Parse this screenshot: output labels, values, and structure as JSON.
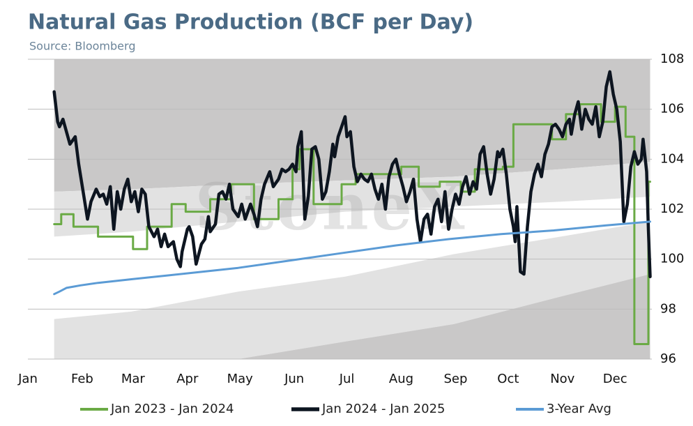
{
  "chart_data": {
    "type": "line",
    "title": "Natural Gas Production (BCF per Day)",
    "subtitle": "Source: Bloomberg",
    "watermark": "StoneX",
    "xlim": [
      0,
      356
    ],
    "xticks": [
      {
        "value": 0,
        "label": "Jan"
      },
      {
        "value": 31,
        "label": "Feb"
      },
      {
        "value": 60,
        "label": "Mar"
      },
      {
        "value": 91,
        "label": "Apr"
      },
      {
        "value": 121,
        "label": "May"
      },
      {
        "value": 152,
        "label": "Jun"
      },
      {
        "value": 182,
        "label": "Jul"
      },
      {
        "value": 213,
        "label": "Aug"
      },
      {
        "value": 244,
        "label": "Sep"
      },
      {
        "value": 274,
        "label": "Oct"
      },
      {
        "value": 305,
        "label": "Nov"
      },
      {
        "value": 335,
        "label": "Dec"
      }
    ],
    "ylim": [
      96,
      108
    ],
    "yticks": [
      96,
      98,
      100,
      102,
      104,
      106,
      108
    ],
    "grid": true,
    "legend": "bottom",
    "bands": {
      "x": [
        15,
        59,
        120,
        181,
        243,
        304,
        355
      ],
      "layers": [
        {
          "color": "#c9c8c8",
          "lower": [
            102.7,
            102.8,
            103.0,
            103.15,
            103.3,
            103.6,
            103.9
          ],
          "upper": [
            108,
            108,
            108,
            108,
            108,
            108,
            108
          ]
        },
        {
          "color": "#e2e2e2",
          "lower": [
            100.9,
            101.1,
            101.5,
            101.9,
            102.1,
            102.3,
            102.5
          ],
          "upper": [
            102.7,
            102.8,
            103.0,
            103.15,
            103.3,
            103.6,
            103.9
          ]
        },
        {
          "color": "#e2e2e2",
          "lower": [
            96,
            96,
            96,
            96.7,
            97.4,
            98.5,
            99.4
          ],
          "upper": [
            97.6,
            97.9,
            98.7,
            99.3,
            100.2,
            100.9,
            101.5
          ]
        },
        {
          "color": "#c9c8c8",
          "lower": [
            96,
            96,
            96,
            96,
            96,
            96,
            96
          ],
          "upper": [
            96,
            96,
            96,
            96.7,
            97.4,
            98.5,
            99.4
          ]
        }
      ]
    },
    "series": [
      {
        "name": "Jan 2023 - Jan 2024",
        "color": "#6aaa45",
        "width": 3,
        "x": [
          15,
          19,
          19,
          26,
          26,
          40,
          40,
          60,
          60,
          68,
          68,
          82,
          82,
          90,
          90,
          104,
          104,
          116,
          116,
          129,
          129,
          143,
          143,
          151,
          151,
          155,
          155,
          163,
          163,
          179,
          179,
          187,
          187,
          213,
          213,
          223,
          223,
          235,
          235,
          247,
          247,
          255,
          255,
          271,
          271,
          277,
          277,
          299,
          299,
          307,
          307,
          315,
          315,
          327,
          327,
          335,
          335,
          341,
          341,
          346,
          346,
          354,
          354,
          355
        ],
        "values": [
          101.4,
          101.4,
          101.8,
          101.8,
          101.3,
          101.3,
          100.9,
          100.9,
          100.4,
          100.4,
          101.3,
          101.3,
          102.2,
          102.2,
          101.9,
          101.9,
          102.4,
          102.4,
          103.0,
          103.0,
          101.6,
          101.6,
          102.4,
          102.4,
          103.6,
          103.6,
          104.4,
          104.4,
          102.2,
          102.2,
          103.0,
          103.0,
          103.4,
          103.4,
          103.7,
          103.7,
          102.9,
          102.9,
          103.1,
          103.1,
          102.7,
          102.7,
          103.6,
          103.6,
          103.7,
          103.7,
          105.4,
          105.4,
          104.8,
          104.8,
          105.8,
          105.8,
          106.2,
          106.2,
          105.5,
          105.5,
          106.1,
          106.1,
          104.9,
          104.9,
          96.6,
          96.6,
          103.1,
          103.1
        ]
      },
      {
        "name": "Jan 2024 - Jan 2025",
        "color": "#0d1520",
        "width": 4.5,
        "x": [
          15,
          17,
          18,
          20,
          22,
          24,
          27,
          29,
          32,
          34,
          36,
          39,
          41,
          43,
          45,
          47,
          49,
          51,
          53,
          55,
          57,
          59,
          61,
          63,
          65,
          67,
          69,
          72,
          74,
          76,
          78,
          80,
          83,
          85,
          87,
          88,
          91,
          92,
          94,
          96,
          99,
          101,
          103,
          104,
          107,
          109,
          111,
          113,
          115,
          117,
          120,
          122,
          124,
          127,
          129,
          131,
          133,
          135,
          138,
          140,
          143,
          145,
          147,
          149,
          151,
          153,
          154,
          156,
          158,
          160,
          162,
          164,
          166,
          168,
          170,
          172,
          174,
          175,
          177,
          179,
          181,
          182,
          184,
          186,
          188,
          190,
          192,
          194,
          196,
          198,
          200,
          202,
          204,
          206,
          208,
          210,
          212,
          214,
          216,
          218,
          220,
          222,
          224,
          226,
          228,
          230,
          232,
          234,
          236,
          238,
          240,
          242,
          244,
          246,
          248,
          250,
          252,
          254,
          256,
          258,
          260,
          262,
          264,
          266,
          268,
          269,
          271,
          273,
          275,
          277,
          278,
          279,
          281,
          283,
          285,
          287,
          289,
          291,
          293,
          295,
          297,
          299,
          301,
          303,
          305,
          307,
          309,
          310,
          312,
          314,
          316,
          318,
          320,
          322,
          324,
          326,
          328,
          330,
          332,
          334,
          336,
          338,
          340,
          342,
          344,
          346,
          348,
          350,
          351,
          353,
          354,
          355
        ],
        "values": [
          106.7,
          105.5,
          105.3,
          105.6,
          105.1,
          104.6,
          104.9,
          103.8,
          102.5,
          101.6,
          102.3,
          102.8,
          102.5,
          102.6,
          102.2,
          102.9,
          101.2,
          102.7,
          102.0,
          102.8,
          103.2,
          102.3,
          102.7,
          101.9,
          102.8,
          102.6,
          101.3,
          100.9,
          101.2,
          100.5,
          101.0,
          100.5,
          100.7,
          100.0,
          99.7,
          100.3,
          101.2,
          101.3,
          100.9,
          99.8,
          100.6,
          100.8,
          101.7,
          101.1,
          101.4,
          102.6,
          102.7,
          102.4,
          103.0,
          102.0,
          101.7,
          102.2,
          101.6,
          102.2,
          101.8,
          101.3,
          102.4,
          103.0,
          103.5,
          102.9,
          103.2,
          103.6,
          103.5,
          103.6,
          103.8,
          103.5,
          104.5,
          105.1,
          101.6,
          102.5,
          104.4,
          104.5,
          104.0,
          102.4,
          102.7,
          103.5,
          104.6,
          104.1,
          104.9,
          105.3,
          105.7,
          104.9,
          105.1,
          103.7,
          103.1,
          103.4,
          103.2,
          103.1,
          103.4,
          102.8,
          102.4,
          103.0,
          102.0,
          103.3,
          103.8,
          104.0,
          103.4,
          102.9,
          102.3,
          102.7,
          103.2,
          101.6,
          100.7,
          101.6,
          101.8,
          101.0,
          102.1,
          102.4,
          101.5,
          102.7,
          101.2,
          102.0,
          102.6,
          102.2,
          102.9,
          103.3,
          102.6,
          103.1,
          102.8,
          104.2,
          104.5,
          103.4,
          102.6,
          103.2,
          104.3,
          104.1,
          104.4,
          103.4,
          102.0,
          101.3,
          100.7,
          102.1,
          99.5,
          99.4,
          101.3,
          102.7,
          103.4,
          103.8,
          103.3,
          104.2,
          104.6,
          105.3,
          105.4,
          105.2,
          104.9,
          105.4,
          105.6,
          105.0,
          105.8,
          106.3,
          105.2,
          106.0,
          105.6,
          105.4,
          106.1,
          104.9,
          105.5,
          106.9,
          107.5,
          106.6,
          106.0,
          104.7,
          101.5,
          102.2,
          103.7,
          104.3,
          103.8,
          104.0,
          104.8,
          103.5,
          101.2,
          99.3
        ]
      },
      {
        "name": "3-Year Avg",
        "color": "#5b9bd5",
        "width": 3,
        "x": [
          15,
          18,
          22,
          26,
          30,
          40,
          60,
          80,
          100,
          120,
          150,
          180,
          210,
          240,
          270,
          300,
          330,
          355
        ],
        "values": [
          98.6,
          98.7,
          98.85,
          98.9,
          98.95,
          99.05,
          99.2,
          99.35,
          99.5,
          99.65,
          99.95,
          100.25,
          100.55,
          100.8,
          101.0,
          101.15,
          101.35,
          101.5
        ]
      }
    ]
  }
}
